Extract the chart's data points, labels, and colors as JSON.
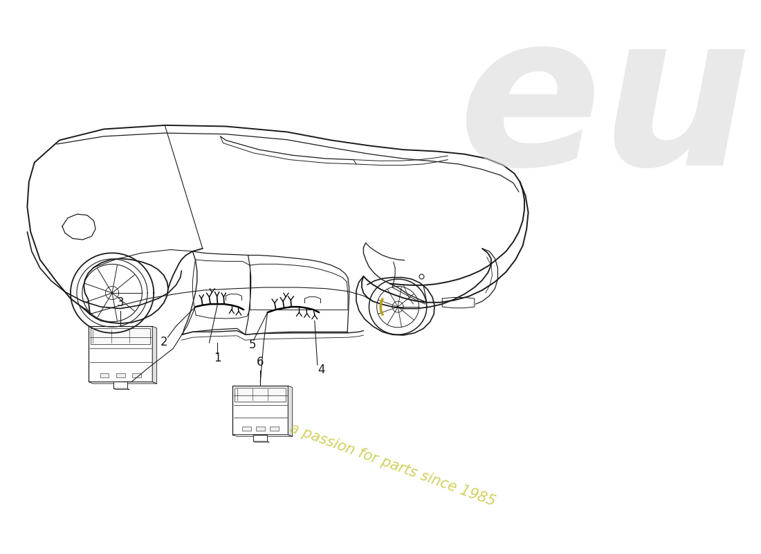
{
  "background_color": "#ffffff",
  "line_color": "#1a1a1a",
  "watermark_eu_color": "#d8d8d8",
  "watermark_text_color": "#c8c840",
  "watermark_text": "a passion for parts since 1985",
  "label_fontsize": 11,
  "lw_body": 1.2,
  "lw_detail": 0.7,
  "lw_wire": 1.0
}
